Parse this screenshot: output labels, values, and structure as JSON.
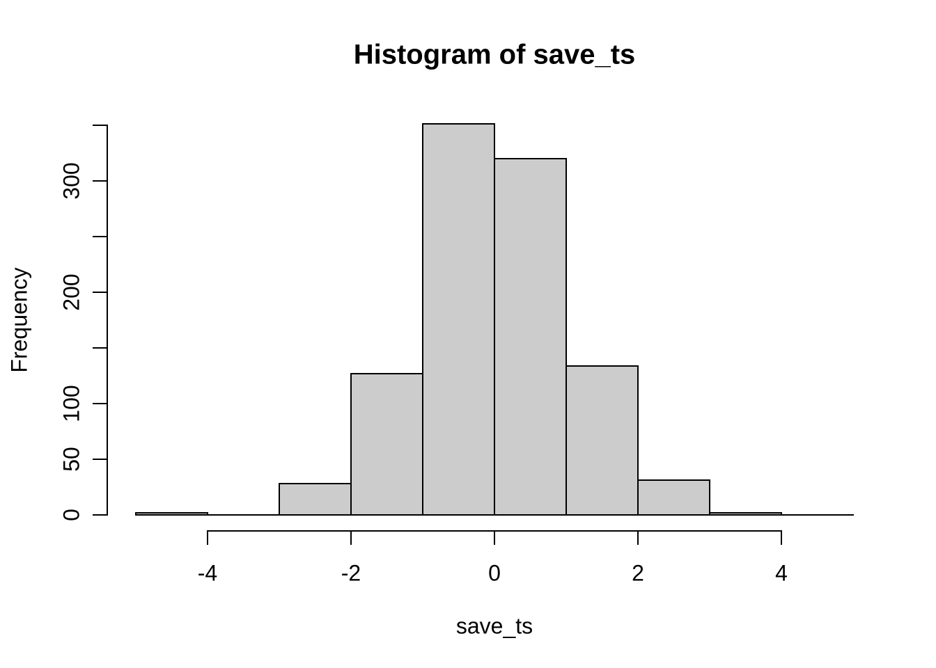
{
  "title": "Histogram of save_ts",
  "chart_data": {
    "type": "bar",
    "subtype": "histogram",
    "title": "Histogram of save_ts",
    "xlabel": "save_ts",
    "ylabel": "Frequency",
    "breaks": [
      -5,
      -4,
      -3,
      -2,
      -1,
      0,
      1,
      2,
      3,
      4,
      5
    ],
    "counts": [
      2,
      0,
      28,
      127,
      351,
      320,
      134,
      31,
      2,
      0
    ],
    "xlim": [
      -5,
      5
    ],
    "ylim": [
      0,
      350
    ],
    "x_ticks": [
      {
        "value": -4,
        "label": "-4"
      },
      {
        "value": -2,
        "label": "-2"
      },
      {
        "value": 0,
        "label": "0"
      },
      {
        "value": 2,
        "label": "2"
      },
      {
        "value": 4,
        "label": "4"
      }
    ],
    "y_ticks": [
      {
        "value": 0,
        "label": "0"
      },
      {
        "value": 50,
        "label": "50"
      },
      {
        "value": 100,
        "label": "100"
      },
      {
        "value": 150,
        "label": ""
      },
      {
        "value": 200,
        "label": "200"
      },
      {
        "value": 250,
        "label": ""
      },
      {
        "value": 300,
        "label": "300"
      },
      {
        "value": 350,
        "label": ""
      }
    ],
    "grid": false,
    "legend_position": "none",
    "bar_fill": "#cccccc",
    "bar_border": "#000000",
    "background": "#ffffff",
    "text_color": "#000000"
  }
}
